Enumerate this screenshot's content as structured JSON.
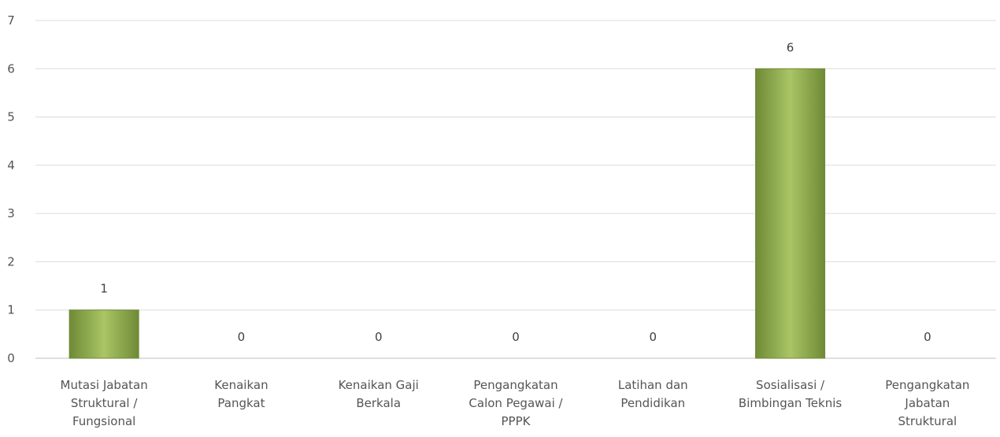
{
  "chart_data": {
    "type": "bar",
    "title": "",
    "xlabel": "",
    "ylabel": "",
    "categories": [
      "Mutasi Jabatan Struktural / Fungsional",
      "Kenaikan Pangkat",
      "Kenaikan Gaji Berkala",
      "Pengangkatan Calon Pegawai / PPPK",
      "Latihan dan Pendidikan",
      "Sosialisasi / Bimbingan Teknis",
      "Pengangkatan Jabatan Struktural"
    ],
    "category_lines": [
      [
        "Mutasi Jabatan",
        "Struktural /",
        "Fungsional"
      ],
      [
        "Kenaikan",
        "Pangkat"
      ],
      [
        "Kenaikan Gaji",
        "Berkala"
      ],
      [
        "Pengangkatan",
        "Calon Pegawai /",
        "PPPK"
      ],
      [
        "Latihan dan",
        "Pendidikan"
      ],
      [
        "Sosialisasi /",
        "Bimbingan Teknis"
      ],
      [
        "Pengangkatan",
        "Jabatan",
        "Struktural"
      ]
    ],
    "values": [
      1,
      0,
      0,
      0,
      0,
      6,
      0
    ],
    "ylim": [
      0,
      7
    ],
    "yticks": [
      0,
      1,
      2,
      3,
      4,
      5,
      6,
      7
    ],
    "grid": true,
    "legend": "none",
    "bar_color": "#9bbb59",
    "bar_color_dark": "#6f8a36"
  }
}
